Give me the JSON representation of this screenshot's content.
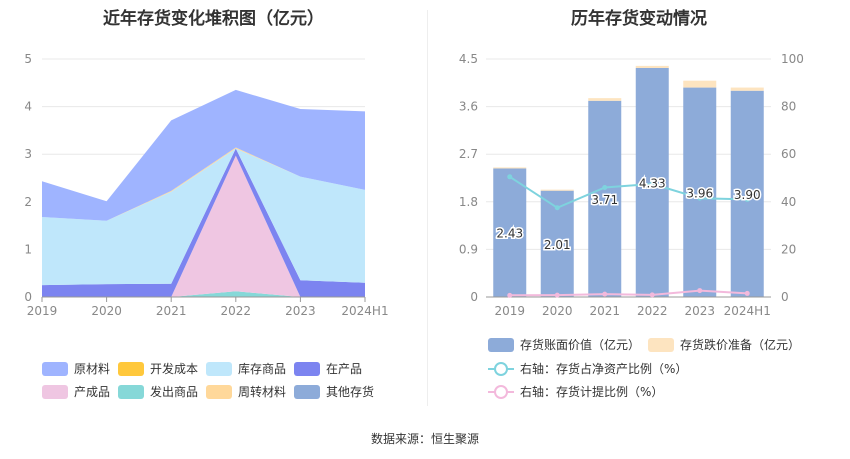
{
  "source": "数据来源：恒生聚源",
  "colors": {
    "raw_materials": "#9fb4ff",
    "dev_cost": "#ffc83c",
    "inventory_goods": "#bfe7fb",
    "wip": "#7c84f0",
    "finished": "#efc6e2",
    "shipped": "#86d8d8",
    "turnover": "#ffd89a",
    "other": "#8dabd9",
    "book_value": "#8dabd9",
    "provision": "#fde4c0",
    "net_ratio": "#7ed3de",
    "provision_ratio": "#f3b9dc"
  },
  "chart_data": [
    {
      "type": "area",
      "stacked": true,
      "title": "近年存货变化堆积图（亿元）",
      "categories": [
        "2019",
        "2020",
        "2021",
        "2022",
        "2023",
        "2024H1"
      ],
      "ylim": [
        0,
        5
      ],
      "yticks": [
        "0",
        "1",
        "2",
        "3",
        "4",
        "5"
      ],
      "grid": true,
      "legend_position": "bottom",
      "series": [
        {
          "name": "发出商品",
          "color": "#86d8d8",
          "values": [
            0.0,
            0.0,
            0.0,
            0.12,
            0.0,
            0.0
          ]
        },
        {
          "name": "产成品",
          "color": "#efc6e2",
          "values": [
            0.0,
            0.0,
            0.0,
            2.85,
            0.0,
            0.0
          ]
        },
        {
          "name": "在产品",
          "color": "#7c84f0",
          "values": [
            0.25,
            0.27,
            0.28,
            0.15,
            0.35,
            0.3
          ]
        },
        {
          "name": "库存商品",
          "color": "#bfe7fb",
          "values": [
            1.43,
            1.33,
            1.93,
            0.0,
            2.18,
            1.95
          ]
        },
        {
          "name": "周转材料",
          "color": "#ffd89a",
          "values": [
            0.0,
            0.0,
            0.02,
            0.02,
            0.0,
            0.0
          ]
        },
        {
          "name": "开发成本",
          "color": "#ffc83c",
          "values": [
            0.0,
            0.0,
            0.0,
            0.0,
            0.0,
            0.0
          ]
        },
        {
          "name": "其他存货",
          "color": "#8dabd9",
          "values": [
            0.0,
            0.0,
            0.0,
            0.0,
            0.0,
            0.0
          ]
        },
        {
          "name": "原材料",
          "color": "#9fb4ff",
          "values": [
            0.75,
            0.41,
            1.48,
            1.21,
            1.42,
            1.65
          ]
        }
      ],
      "legend": [
        "原材料",
        "开发成本",
        "库存商品",
        "在产品",
        "产成品",
        "发出商品",
        "周转材料",
        "其他存货"
      ]
    },
    {
      "type": "bar",
      "title": "历年存货变动情况",
      "categories": [
        "2019",
        "2020",
        "2021",
        "2022",
        "2023",
        "2024H1"
      ],
      "ylim": [
        0,
        4.5
      ],
      "yticks": [
        "0",
        "0.9",
        "1.8",
        "2.7",
        "3.6",
        "4.5"
      ],
      "y2lim": [
        0,
        100
      ],
      "y2ticks": [
        "0",
        "20",
        "40",
        "60",
        "80",
        "100"
      ],
      "grid": true,
      "legend_position": "bottom",
      "series": [
        {
          "name": "存货账面价值（亿元）",
          "type": "bar",
          "values": [
            2.43,
            2.01,
            3.71,
            4.33,
            3.96,
            3.9
          ]
        },
        {
          "name": "存货跌价准备（亿元）",
          "type": "bar",
          "stacked": true,
          "values": [
            0.02,
            0.02,
            0.05,
            0.04,
            0.13,
            0.06
          ]
        },
        {
          "name": "右轴：存货占净资产比例（%）",
          "type": "line",
          "axis": "right",
          "values": [
            50.5,
            37.5,
            46,
            47.5,
            41.5,
            41
          ]
        },
        {
          "name": "右轴：存货计提比例（%）",
          "type": "line",
          "axis": "right",
          "values": [
            0.7,
            0.8,
            1.2,
            0.9,
            2.7,
            1.5
          ]
        }
      ],
      "bar_labels": [
        "2.43",
        "2.01",
        "3.71",
        "4.33",
        "3.96",
        "3.90"
      ],
      "legend": [
        "存货账面价值（亿元）",
        "存货跌价准备（亿元）",
        "右轴：存货占净资产比例（%）",
        "右轴：存货计提比例（%）"
      ]
    }
  ]
}
